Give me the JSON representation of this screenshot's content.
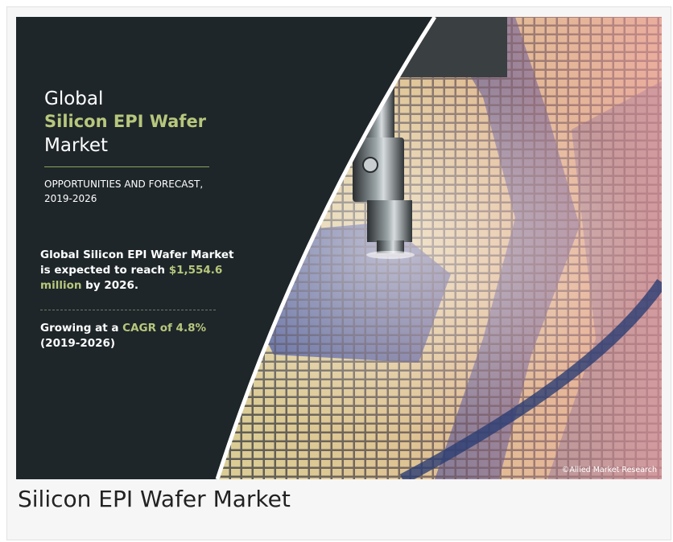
{
  "banner": {
    "title_line1": "Global",
    "title_line2": "Silicon EPI Wafer",
    "title_line3": "Market",
    "subtitle": "OPPORTUNITIES AND FORECAST, 2019-2026",
    "stat_prefix": "Global Silicon EPI Wafer Market is expected to reach",
    "stat_value": "$1,554.6 million",
    "stat_suffix": "by 2026.",
    "growth_prefix": "Growing at a",
    "growth_value": "CAGR of 4.8%",
    "growth_period": "(2019-2026)",
    "copyright": "©Allied Market Research",
    "image_subject": "wafer-probe-photo"
  },
  "caption": "Silicon EPI Wafer Market",
  "colors": {
    "panel": "#1e2629",
    "accent": "#b7c77d",
    "wafer_blue": "#1f3f86",
    "wafer_tile": "#d9d79b"
  }
}
